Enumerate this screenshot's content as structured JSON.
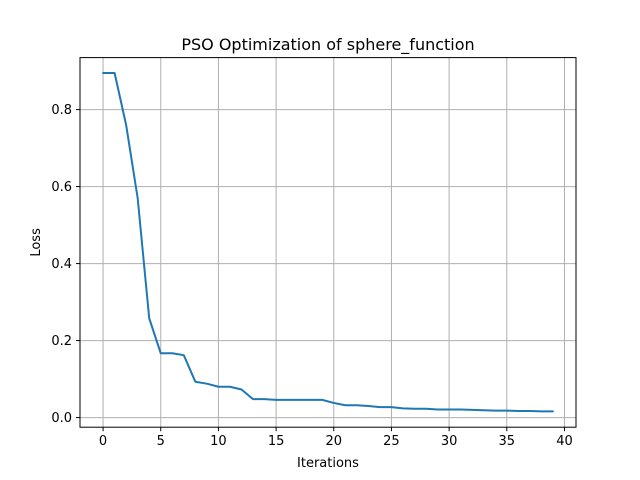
{
  "chart_data": {
    "type": "line",
    "title": "PSO Optimization of sphere_function",
    "xlabel": "Iterations",
    "ylabel": "Loss",
    "xlim": [
      -2,
      41
    ],
    "ylim": [
      -0.025,
      0.935
    ],
    "xticks": [
      0,
      5,
      10,
      15,
      20,
      25,
      30,
      35,
      40
    ],
    "yticks": [
      0.0,
      0.2,
      0.4,
      0.6,
      0.8
    ],
    "ytick_labels": [
      "0.0",
      "0.2",
      "0.4",
      "0.6",
      "0.8"
    ],
    "grid": true,
    "series": [
      {
        "color": "#1f77b4",
        "x": [
          0,
          1,
          2,
          3,
          4,
          5,
          6,
          7,
          8,
          9,
          10,
          11,
          12,
          13,
          14,
          15,
          16,
          17,
          18,
          19,
          20,
          21,
          22,
          23,
          24,
          25,
          26,
          27,
          28,
          29,
          30,
          31,
          32,
          33,
          34,
          35,
          36,
          37,
          38,
          39
        ],
        "values": [
          0.895,
          0.895,
          0.76,
          0.57,
          0.258,
          0.167,
          0.167,
          0.162,
          0.093,
          0.088,
          0.08,
          0.08,
          0.073,
          0.048,
          0.048,
          0.046,
          0.046,
          0.046,
          0.046,
          0.046,
          0.038,
          0.032,
          0.032,
          0.03,
          0.027,
          0.027,
          0.024,
          0.023,
          0.023,
          0.021,
          0.021,
          0.021,
          0.02,
          0.019,
          0.018,
          0.018,
          0.017,
          0.017,
          0.016,
          0.016
        ]
      }
    ]
  }
}
